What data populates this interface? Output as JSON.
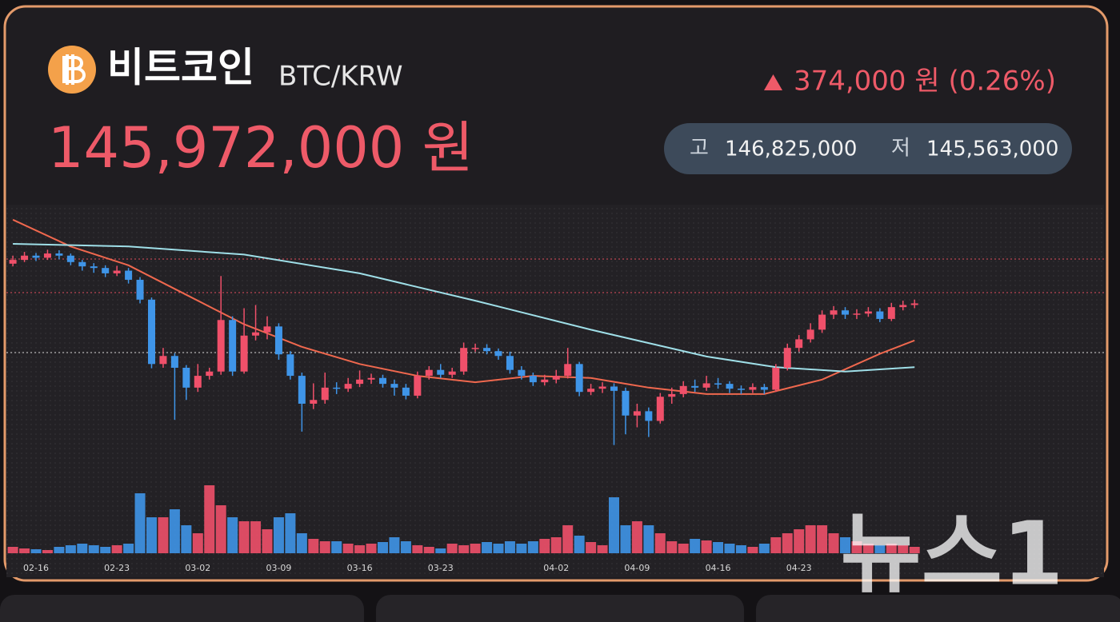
{
  "header": {
    "coin_name": "비트코인",
    "pair": "BTC/KRW",
    "price": "145,972,000 원",
    "change": "374,000 원 (0.26%)",
    "high_label": "고",
    "high": "146,825,000",
    "low_label": "저",
    "low": "145,563,000"
  },
  "watermark": "뉴스1",
  "chart_data": {
    "type": "candlestick",
    "categories": [
      null,
      null,
      "02-16",
      null,
      null,
      null,
      null,
      null,
      null,
      "02-23",
      null,
      null,
      null,
      null,
      null,
      null,
      "03-02",
      null,
      null,
      null,
      null,
      null,
      null,
      "03-09",
      null,
      null,
      null,
      null,
      null,
      null,
      "03-16",
      null,
      null,
      null,
      null,
      null,
      null,
      "03-23",
      null,
      null,
      null,
      null,
      null,
      null,
      null,
      null,
      null,
      "04-02",
      null,
      null,
      null,
      null,
      null,
      null,
      "04-09",
      null,
      null,
      null,
      null,
      null,
      null,
      "04-16",
      null,
      null,
      null,
      null,
      null,
      null,
      "04-23",
      null,
      null,
      null,
      null,
      null,
      null,
      null,
      null,
      null,
      null
    ],
    "open": [
      144.3,
      145.0,
      145.8,
      145.4,
      146.2,
      145.8,
      144.6,
      143.8,
      143.5,
      142.5,
      143.0,
      141.3,
      137.6,
      125.6,
      127.1,
      124.9,
      121.2,
      123.4,
      124.2,
      133.8,
      124.2,
      130.9,
      131.5,
      132.6,
      127.4,
      123.4,
      118.2,
      118.9,
      121.2,
      121.0,
      121.9,
      122.7,
      123.0,
      121.9,
      121.2,
      119.7,
      123.4,
      124.5,
      123.6,
      124.2,
      128.6,
      128.6,
      128.0,
      127.1,
      124.5,
      123.4,
      122.2,
      122.7,
      123.4,
      125.6,
      120.4,
      121.0,
      121.4,
      120.6,
      116.0,
      116.8,
      115.0,
      119.5,
      120.0,
      121.5,
      121.2,
      122.0,
      121.9,
      121.0,
      120.8,
      121.3,
      120.8,
      124.9,
      128.6,
      130.2,
      132.0,
      134.8,
      135.6,
      134.8,
      135.0,
      135.4,
      134.0,
      136.2,
      136.6
    ],
    "close": [
      145.0,
      145.8,
      145.4,
      146.2,
      145.8,
      144.6,
      143.8,
      143.5,
      142.5,
      143.0,
      141.3,
      137.6,
      125.6,
      127.1,
      124.9,
      121.2,
      123.4,
      124.2,
      133.8,
      124.2,
      130.9,
      131.5,
      132.6,
      127.4,
      123.4,
      118.2,
      118.9,
      121.2,
      121.0,
      121.9,
      122.7,
      123.0,
      121.9,
      121.2,
      119.7,
      123.4,
      124.5,
      123.6,
      124.2,
      128.6,
      128.6,
      128.0,
      127.1,
      124.5,
      123.4,
      122.2,
      122.7,
      123.4,
      125.6,
      120.4,
      121.0,
      121.4,
      120.6,
      116.0,
      116.8,
      115.0,
      119.5,
      120.0,
      121.5,
      121.2,
      122.0,
      121.9,
      121.0,
      120.8,
      121.3,
      120.8,
      124.9,
      128.6,
      130.2,
      132.0,
      134.8,
      135.6,
      134.8,
      135.0,
      135.4,
      134.0,
      136.2,
      136.6,
      136.9
    ],
    "high": [
      145.8,
      146.5,
      146.3,
      146.9,
      146.8,
      146.2,
      145.0,
      144.4,
      144.0,
      143.9,
      143.5,
      141.8,
      138.0,
      128.6,
      127.6,
      125.4,
      125.6,
      124.9,
      142.0,
      134.5,
      136.0,
      136.6,
      134.5,
      133.2,
      128.0,
      124.0,
      122.0,
      124.0,
      122.2,
      123.0,
      124.4,
      123.8,
      123.6,
      122.7,
      121.9,
      124.2,
      125.2,
      125.6,
      124.9,
      129.6,
      129.4,
      129.3,
      128.5,
      127.9,
      125.2,
      124.0,
      123.6,
      124.5,
      128.6,
      126.0,
      121.9,
      122.2,
      122.0,
      121.2,
      118.2,
      117.5,
      120.2,
      121.2,
      122.4,
      122.7,
      123.4,
      123.0,
      122.4,
      121.6,
      122.0,
      121.9,
      125.6,
      129.4,
      131.0,
      133.2,
      135.6,
      136.4,
      136.2,
      135.8,
      136.2,
      136.0,
      137.0,
      137.4,
      137.6
    ],
    "low": [
      143.8,
      144.6,
      144.8,
      145.0,
      145.1,
      144.0,
      143.0,
      142.6,
      141.8,
      142.0,
      140.6,
      136.9,
      124.8,
      124.9,
      115.2,
      118.9,
      120.4,
      122.7,
      123.6,
      123.4,
      123.8,
      130.0,
      130.2,
      126.4,
      122.7,
      113.0,
      117.2,
      118.2,
      120.0,
      120.4,
      121.3,
      121.9,
      121.2,
      119.7,
      119.0,
      119.2,
      122.7,
      123.0,
      123.0,
      123.6,
      127.9,
      127.4,
      126.4,
      123.8,
      122.7,
      121.5,
      121.6,
      122.0,
      122.9,
      119.6,
      119.8,
      120.2,
      110.5,
      112.5,
      113.8,
      112.0,
      114.5,
      118.2,
      119.4,
      120.4,
      120.6,
      121.0,
      120.2,
      120.0,
      120.2,
      120.0,
      120.4,
      124.4,
      127.9,
      129.6,
      131.4,
      134.0,
      134.0,
      134.0,
      134.4,
      133.4,
      133.6,
      135.6,
      136.0
    ],
    "volume": [
      8,
      6,
      5,
      4,
      8,
      10,
      12,
      10,
      8,
      10,
      12,
      75,
      45,
      45,
      55,
      35,
      25,
      85,
      60,
      45,
      40,
      40,
      30,
      45,
      50,
      25,
      18,
      15,
      15,
      12,
      10,
      12,
      14,
      20,
      15,
      10,
      8,
      6,
      12,
      10,
      12,
      14,
      12,
      15,
      12,
      15,
      18,
      20,
      35,
      22,
      14,
      10,
      70,
      35,
      40,
      35,
      25,
      15,
      12,
      18,
      16,
      14,
      12,
      10,
      8,
      12,
      20,
      25,
      30,
      35,
      35,
      25,
      20,
      15,
      12,
      10,
      12,
      10,
      8
    ],
    "moving_averages": [
      {
        "color": "#f0684e",
        "x": [
          0,
          5,
          10,
          15,
          20,
          25,
          30,
          35,
          40,
          45,
          50,
          55,
          60,
          65,
          70,
          75,
          78
        ],
        "values": [
          152.5,
          147.5,
          144.0,
          138.5,
          133.0,
          128.8,
          125.6,
          123.4,
          122.2,
          123.4,
          123.0,
          121.2,
          120.0,
          120.0,
          122.7,
          127.5,
          130.0
        ]
      },
      {
        "color": "#9fdfe8",
        "x": [
          0,
          10,
          20,
          30,
          40,
          50,
          60,
          66,
          72,
          78
        ],
        "values": [
          148.0,
          147.5,
          146.0,
          142.5,
          137.4,
          132.0,
          127.0,
          125.0,
          124.2,
          125.0
        ]
      }
    ],
    "up_color": "#f0506a",
    "down_color": "#3f95e8",
    "ylim": [
      110,
      155
    ],
    "vlim": [
      0,
      100
    ]
  }
}
